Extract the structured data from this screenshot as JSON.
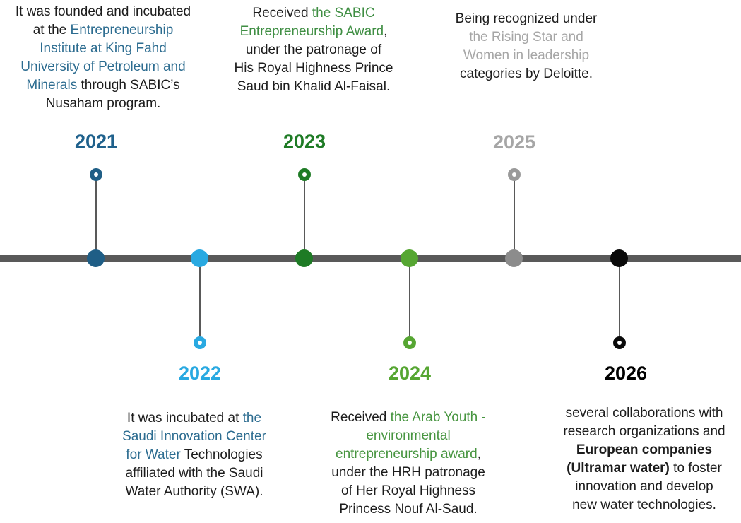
{
  "colors": {
    "background": "#FFFFFF",
    "timeline_line": "#595959",
    "connector": "#595959",
    "body_text": "#1C1C1C"
  },
  "entries": [
    {
      "year": "2021",
      "side": "top",
      "year_color": "#1F618C",
      "dot_color": "#1F5E86",
      "marker_color": "#1F5E86",
      "segments": [
        {
          "text": "It was founded and incubated\nat the "
        },
        {
          "text": "Entrepreneurship\nInstitute at King Fahd\nUniversity of Petroleum and\nMinerals",
          "color": "#2C6C90"
        },
        {
          "text": " through SABIC’s\nNusaham program."
        }
      ]
    },
    {
      "year": "2022",
      "side": "bottom",
      "year_color": "#29A9E1",
      "dot_color": "#29A9E1",
      "marker_color": "#29A9E1",
      "segments": [
        {
          "text": "It was incubated at "
        },
        {
          "text": "the\nSaudi Innovation Center\nfor Water",
          "color": "#2C6C90"
        },
        {
          "text": " Technologies\naffiliated with the Saudi\nWater Authority (SWA)."
        }
      ]
    },
    {
      "year": "2023",
      "side": "top",
      "year_color": "#1E7B25",
      "dot_color": "#1E7B25",
      "marker_color": "#1E7B25",
      "segments": [
        {
          "text": "Received "
        },
        {
          "text": "the SABIC\nEntrepreneurship Award",
          "color": "#3F8E43"
        },
        {
          "text": ",\nunder the patronage of\nHis Royal Highness Prince\nSaud bin Khalid Al-Faisal."
        }
      ]
    },
    {
      "year": "2024",
      "side": "bottom",
      "year_color": "#56A632",
      "dot_color": "#56A632",
      "marker_color": "#56A632",
      "segments": [
        {
          "text": "Received "
        },
        {
          "text": "the Arab Youth -\nenvironmental\nentrepreneurship award",
          "color": "#479540"
        },
        {
          "text": ",\nunder the HRH patronage\nof Her Royal Highness\nPrincess Nouf Al-Saud."
        }
      ]
    },
    {
      "year": "2025",
      "side": "top",
      "year_color": "#A6A6A6",
      "dot_color": "#8C8C8C",
      "marker_color": "#9A9A9A",
      "segments": [
        {
          "text": "Being recognized under\n"
        },
        {
          "text": "the Rising Star and\nWomen in leadership\n",
          "color": "#A6A6A6"
        },
        {
          "text": "categories by Deloitte."
        }
      ]
    },
    {
      "year": "2026",
      "side": "bottom",
      "year_color": "#000000",
      "dot_color": "#0A0A0A",
      "marker_color": "#0A0A0A",
      "segments": [
        {
          "text": "several collaborations with\nresearch organizations and\n"
        },
        {
          "text": "European companies\n(Ultramar water)",
          "bold": true
        },
        {
          "text": " to foster\ninnovation and develop\nnew water technologies."
        }
      ]
    }
  ]
}
